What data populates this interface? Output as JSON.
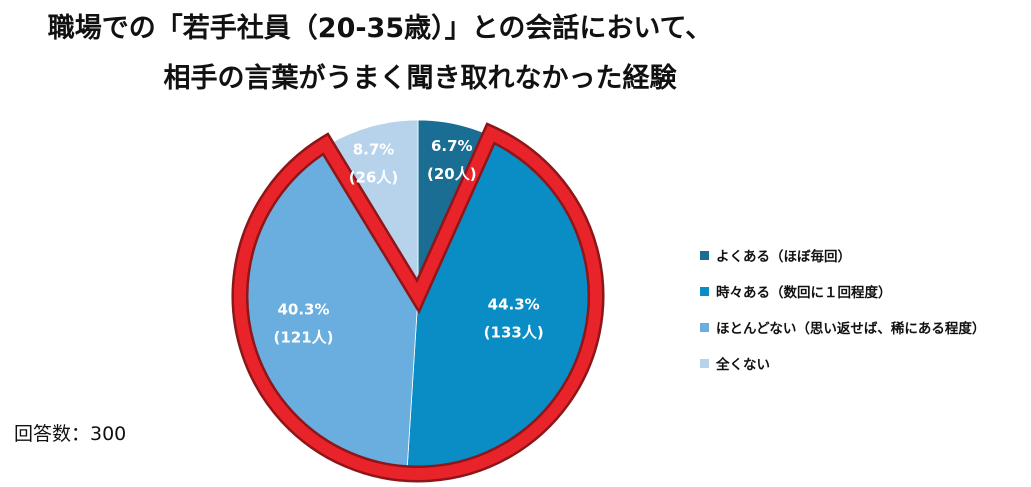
{
  "title": {
    "line1": "職場での「若手社員（20-35歳）」との会話において、",
    "line2": "相手の言葉がうまく聞き取れなかった経験"
  },
  "respondents": "回答数：300",
  "chart_data": {
    "type": "pie",
    "title": "職場での「若手社員（20-35歳）」との会話において、相手の言葉がうまく聞き取れなかった経験",
    "unit": "%",
    "start_angle_deg": 0,
    "direction": "clockwise",
    "legend_position": "right",
    "slices": [
      {
        "label": "よくある（ほぼ毎回）",
        "value": 6.7,
        "count": 20,
        "pct_text": "6.7%",
        "count_text": "(20人)",
        "color": "#1a6e94"
      },
      {
        "label": "時々ある（数回に１回程度）",
        "value": 44.3,
        "count": 133,
        "pct_text": "44.3%",
        "count_text": "(133人)",
        "color": "#0a8cc4"
      },
      {
        "label": "ほとんどない（思い返せば、稀にある程度）",
        "value": 40.3,
        "count": 121,
        "pct_text": "40.3%",
        "count_text": "(121人)",
        "color": "#69aedf"
      },
      {
        "label": "全くない",
        "value": 8.7,
        "count": 26,
        "pct_text": "8.7%",
        "count_text": "(26人)",
        "color": "#b7d3ec"
      }
    ],
    "highlight": {
      "slices": [
        1,
        2
      ],
      "color": "#e8232a"
    }
  }
}
